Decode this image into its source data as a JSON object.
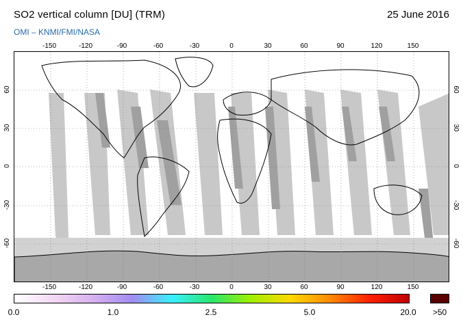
{
  "header": {
    "title": "SO2 vertical column [DU] (TRM)",
    "date": "25 June 2016",
    "credit": "OMI  –  KNMI/FMI/NASA"
  },
  "map": {
    "lon_ticks": [
      "-150",
      "-120",
      "-90",
      "-60",
      "-30",
      "0",
      "30",
      "60",
      "90",
      "120",
      "150"
    ],
    "lat_ticks_left": [
      "60",
      "30",
      "0",
      "-30",
      "-60"
    ],
    "lat_ticks_right": [
      "60",
      "30",
      "0",
      "-30",
      "-60"
    ],
    "swath_color": "#c8c8c8",
    "gap_color": "#a0a0a0",
    "antarctica_color": "#d2d2d2"
  },
  "colorbar": {
    "labels": [
      "0.0",
      "1.0",
      "2.5",
      "5.0",
      "20.0"
    ],
    "overflow_label": ">50",
    "overflow_color": "#5a0000",
    "stops": [
      "#ffffff",
      "#f4d8f4",
      "#d7b0f0",
      "#a08cf0",
      "#38f0ff",
      "#28e66c",
      "#a0f000",
      "#ffd800",
      "#ff8a00",
      "#ff2000",
      "#c00000"
    ]
  }
}
